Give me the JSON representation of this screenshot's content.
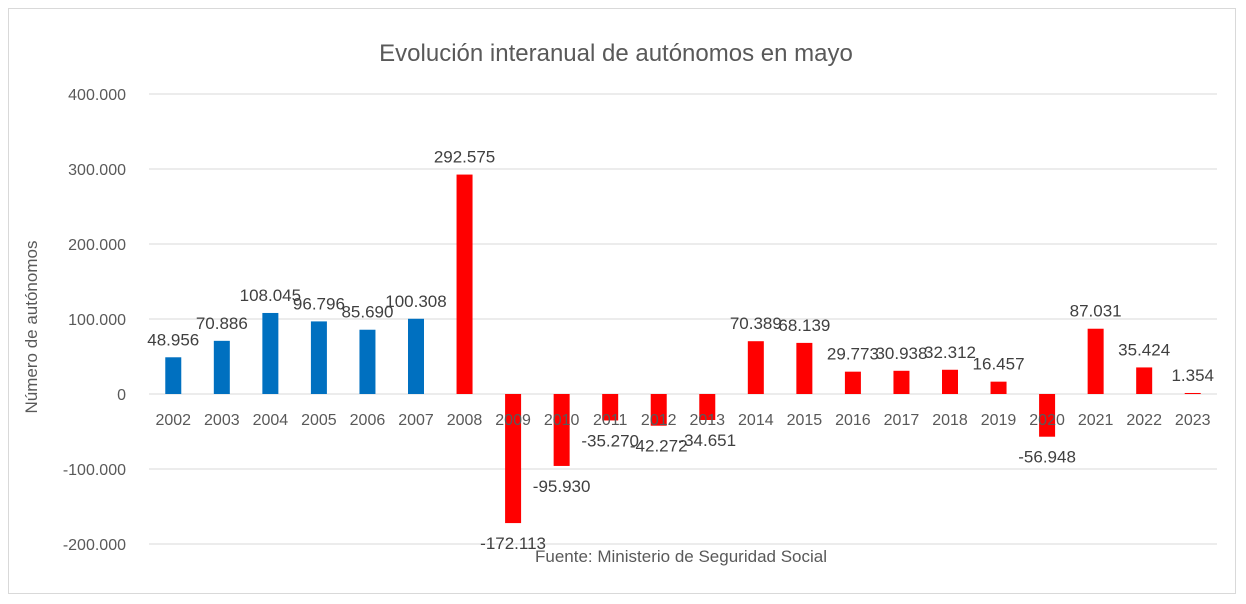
{
  "chart_data": {
    "type": "bar",
    "title": "Evolución interanual de autónomos en mayo",
    "xlabel": "",
    "ylabel": "Número de autónomos",
    "source": "Fuente: Ministerio de Seguridad Social",
    "ylim": [
      -200000,
      400000
    ],
    "yticks": [
      400000,
      300000,
      200000,
      100000,
      0,
      -100000,
      -200000
    ],
    "ytick_labels": [
      "400.000",
      "300.000",
      "200.000",
      "100.000",
      "0",
      "-100.000",
      "-200.000"
    ],
    "grid": true,
    "categories": [
      "2002",
      "2003",
      "2004",
      "2005",
      "2006",
      "2007",
      "2008",
      "2009",
      "2010",
      "2011",
      "2012",
      "2013",
      "2014",
      "2015",
      "2016",
      "2017",
      "2018",
      "2019",
      "2020",
      "2021",
      "2022",
      "2023"
    ],
    "values": [
      48956,
      70886,
      108045,
      96796,
      85690,
      100308,
      292575,
      -172113,
      -95930,
      -35270,
      -42272,
      -34651,
      70389,
      68139,
      29773,
      30938,
      32312,
      16457,
      -56948,
      87031,
      35424,
      1354
    ],
    "value_labels": [
      "48.956",
      "70.886",
      "108.045",
      "96.796",
      "85.690",
      "100.308",
      "292.575",
      "-172.113",
      "-95.930",
      "-35.270",
      "-42.272",
      "-34.651",
      "70.389",
      "68.139",
      "29.773",
      "30.938",
      "32.312",
      "16.457",
      "-56.948",
      "87.031",
      "35.424",
      "1.354"
    ],
    "colors": [
      "#0070c0",
      "#0070c0",
      "#0070c0",
      "#0070c0",
      "#0070c0",
      "#0070c0",
      "#ff0000",
      "#ff0000",
      "#ff0000",
      "#ff0000",
      "#ff0000",
      "#ff0000",
      "#ff0000",
      "#ff0000",
      "#ff0000",
      "#ff0000",
      "#ff0000",
      "#ff0000",
      "#ff0000",
      "#ff0000",
      "#ff0000",
      "#ff0000"
    ]
  }
}
